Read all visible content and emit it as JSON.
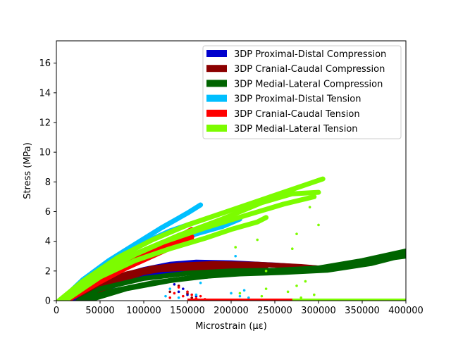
{
  "chart_data": {
    "type": "scatter",
    "xlabel": "Microstrain (με)",
    "ylabel": "Stress (MPa)",
    "xlim": [
      0,
      400000
    ],
    "ylim": [
      0,
      17.5
    ],
    "xticks": [
      0,
      50000,
      100000,
      150000,
      200000,
      250000,
      300000,
      350000,
      400000
    ],
    "yticks": [
      0,
      2,
      4,
      6,
      8,
      10,
      12,
      14,
      16
    ],
    "grid": false,
    "legend_position": "top-right",
    "series": [
      {
        "name": "3DP Proximal-Distal Compression",
        "color": "#0000cd",
        "curves": [
          [
            [
              20000,
              0
            ],
            [
              40000,
              0.9
            ],
            [
              70000,
              1.6
            ],
            [
              100000,
              2.1
            ],
            [
              130000,
              2.45
            ],
            [
              160000,
              2.6
            ],
            [
              200000,
              2.55
            ],
            [
              250000,
              2.4
            ],
            [
              300000,
              2.2
            ]
          ],
          [
            [
              30000,
              0
            ],
            [
              60000,
              0.9
            ],
            [
              90000,
              1.5
            ],
            [
              120000,
              1.9
            ],
            [
              150000,
              2.15
            ],
            [
              180000,
              2.2
            ],
            [
              220000,
              2.1
            ]
          ]
        ],
        "scatter": [
          [
            135000,
            1.1
          ],
          [
            140000,
            0.6
          ],
          [
            150000,
            0.4
          ],
          [
            160000,
            0.3
          ],
          [
            145000,
            0.8
          ]
        ]
      },
      {
        "name": "3DP Cranial-Caudal Compression",
        "color": "#8b0000",
        "curves": [
          [
            [
              25000,
              0
            ],
            [
              50000,
              1.1
            ],
            [
              80000,
              1.8
            ],
            [
              110000,
              2.2
            ],
            [
              140000,
              2.4
            ],
            [
              180000,
              2.5
            ],
            [
              230000,
              2.45
            ],
            [
              280000,
              2.3
            ],
            [
              300000,
              2.2
            ]
          ],
          [
            [
              35000,
              0
            ],
            [
              60000,
              1.2
            ],
            [
              90000,
              1.8
            ],
            [
              120000,
              2.1
            ],
            [
              160000,
              2.2
            ],
            [
              200000,
              2.15
            ],
            [
              250000,
              2.0
            ]
          ],
          [
            [
              40000,
              0
            ],
            [
              70000,
              1.3
            ],
            [
              100000,
              1.9
            ],
            [
              140000,
              2.3
            ],
            [
              190000,
              2.4
            ],
            [
              240000,
              2.3
            ]
          ]
        ],
        "scatter": [
          [
            130000,
            0.6
          ],
          [
            140000,
            1.0
          ],
          [
            150000,
            0.5
          ],
          [
            155000,
            0.2
          ]
        ]
      },
      {
        "name": "3DP Medial-Lateral Compression",
        "color": "#006400",
        "curves": [
          [
            [
              25000,
              0
            ],
            [
              50000,
              0.8
            ],
            [
              100000,
              1.5
            ],
            [
              150000,
              1.85
            ],
            [
              200000,
              2.0
            ],
            [
              250000,
              2.05
            ],
            [
              300000,
              2.2
            ],
            [
              350000,
              2.7
            ],
            [
              400000,
              3.35
            ]
          ],
          [
            [
              30000,
              0
            ],
            [
              60000,
              0.6
            ],
            [
              110000,
              1.2
            ],
            [
              160000,
              1.6
            ],
            [
              210000,
              1.8
            ],
            [
              260000,
              1.9
            ],
            [
              310000,
              2.05
            ],
            [
              360000,
              2.5
            ],
            [
              400000,
              3.1
            ]
          ],
          [
            [
              35000,
              0
            ],
            [
              80000,
              0.8
            ],
            [
              130000,
              1.35
            ],
            [
              180000,
              1.7
            ],
            [
              230000,
              1.9
            ],
            [
              280000,
              2.0
            ],
            [
              330000,
              2.3
            ],
            [
              380000,
              2.85
            ],
            [
              400000,
              3.0
            ]
          ]
        ],
        "scatter": []
      },
      {
        "name": "3DP Proximal-Distal Tension",
        "color": "#00bfff",
        "curves": [
          [
            [
              5000,
              0
            ],
            [
              30000,
              1.4
            ],
            [
              60000,
              2.7
            ],
            [
              90000,
              3.8
            ],
            [
              120000,
              4.9
            ],
            [
              150000,
              5.9
            ],
            [
              165000,
              6.45
            ]
          ],
          [
            [
              8000,
              0
            ],
            [
              35000,
              1.3
            ],
            [
              70000,
              2.8
            ],
            [
              100000,
              3.9
            ],
            [
              130000,
              4.7
            ],
            [
              155000,
              5.2
            ]
          ],
          [
            [
              10000,
              0
            ],
            [
              40000,
              1.2
            ],
            [
              80000,
              2.6
            ],
            [
              120000,
              3.6
            ],
            [
              160000,
              4.5
            ],
            [
              190000,
              5.0
            ],
            [
              210000,
              5.5
            ]
          ]
        ],
        "scatter": [
          [
            125000,
            0.3
          ],
          [
            130000,
            0.8
          ],
          [
            140000,
            0.2
          ],
          [
            150000,
            0.6
          ],
          [
            160000,
            0.4
          ],
          [
            165000,
            1.2
          ],
          [
            200000,
            0.5
          ],
          [
            205000,
            3.0
          ],
          [
            210000,
            0.3
          ],
          [
            215000,
            0.7
          ],
          [
            220000,
            0.2
          ]
        ]
      },
      {
        "name": "3DP Cranial-Caudal Tension",
        "color": "#ff0000",
        "curves": [
          [
            [
              8000,
              0
            ],
            [
              30000,
              1.0
            ],
            [
              60000,
              2.0
            ],
            [
              90000,
              2.9
            ],
            [
              120000,
              3.6
            ],
            [
              150000,
              4.15
            ],
            [
              155000,
              4.3
            ]
          ],
          [
            [
              10000,
              0
            ],
            [
              40000,
              1.2
            ],
            [
              70000,
              2.3
            ],
            [
              100000,
              3.2
            ],
            [
              130000,
              4.0
            ],
            [
              155000,
              4.8
            ]
          ],
          [
            [
              12000,
              0
            ],
            [
              45000,
              1.1
            ],
            [
              80000,
              2.2
            ],
            [
              110000,
              3.0
            ],
            [
              140000,
              3.8
            ],
            [
              155000,
              4.1
            ]
          ]
        ],
        "scatter": [
          [
            130000,
            0.2
          ],
          [
            135000,
            0.5
          ],
          [
            140000,
            0.9
          ],
          [
            145000,
            0.3
          ],
          [
            150000,
            0.6
          ],
          [
            155000,
            0.4
          ],
          [
            160000,
            0.15
          ],
          [
            165000,
            0.3
          ],
          [
            170000,
            0.1
          ]
        ],
        "flat": [
          [
            150000,
            0.05
          ],
          [
            300000,
            0.05
          ]
        ]
      },
      {
        "name": "3DP Medial-Lateral Tension",
        "color": "#7cfc00",
        "curves": [
          [
            [
              3000,
              0
            ],
            [
              30000,
              1.3
            ],
            [
              70000,
              2.9
            ],
            [
              110000,
              4.1
            ],
            [
              150000,
              5.1
            ],
            [
              200000,
              6.1
            ],
            [
              250000,
              7.1
            ],
            [
              300000,
              8.1
            ],
            [
              305000,
              8.2
            ]
          ],
          [
            [
              6000,
              0
            ],
            [
              40000,
              1.5
            ],
            [
              80000,
              2.9
            ],
            [
              120000,
              3.9
            ],
            [
              170000,
              4.9
            ],
            [
              220000,
              5.8
            ],
            [
              260000,
              6.5
            ],
            [
              295000,
              7.0
            ]
          ],
          [
            [
              10000,
              0
            ],
            [
              50000,
              1.6
            ],
            [
              90000,
              2.7
            ],
            [
              130000,
              3.5
            ],
            [
              170000,
              4.2
            ],
            [
              200000,
              4.8
            ],
            [
              230000,
              5.3
            ],
            [
              240000,
              5.6
            ]
          ],
          [
            [
              7000,
              0
            ],
            [
              45000,
              1.7
            ],
            [
              90000,
              3.1
            ],
            [
              140000,
              4.4
            ],
            [
              190000,
              5.5
            ],
            [
              235000,
              6.6
            ],
            [
              270000,
              7.2
            ],
            [
              300000,
              7.3
            ]
          ]
        ],
        "scatter": [
          [
            205000,
            3.6
          ],
          [
            210000,
            0.5
          ],
          [
            230000,
            4.1
          ],
          [
            235000,
            0.3
          ],
          [
            240000,
            2.0
          ],
          [
            265000,
            0.6
          ],
          [
            270000,
            3.5
          ],
          [
            275000,
            4.5
          ],
          [
            280000,
            0.2
          ],
          [
            285000,
            1.3
          ],
          [
            290000,
            6.3
          ],
          [
            300000,
            5.1
          ],
          [
            295000,
            0.4
          ],
          [
            275000,
            1.0
          ],
          [
            240000,
            0.8
          ]
        ],
        "flat": [
          [
            270000,
            0.05
          ],
          [
            400000,
            0.05
          ]
        ]
      }
    ]
  }
}
